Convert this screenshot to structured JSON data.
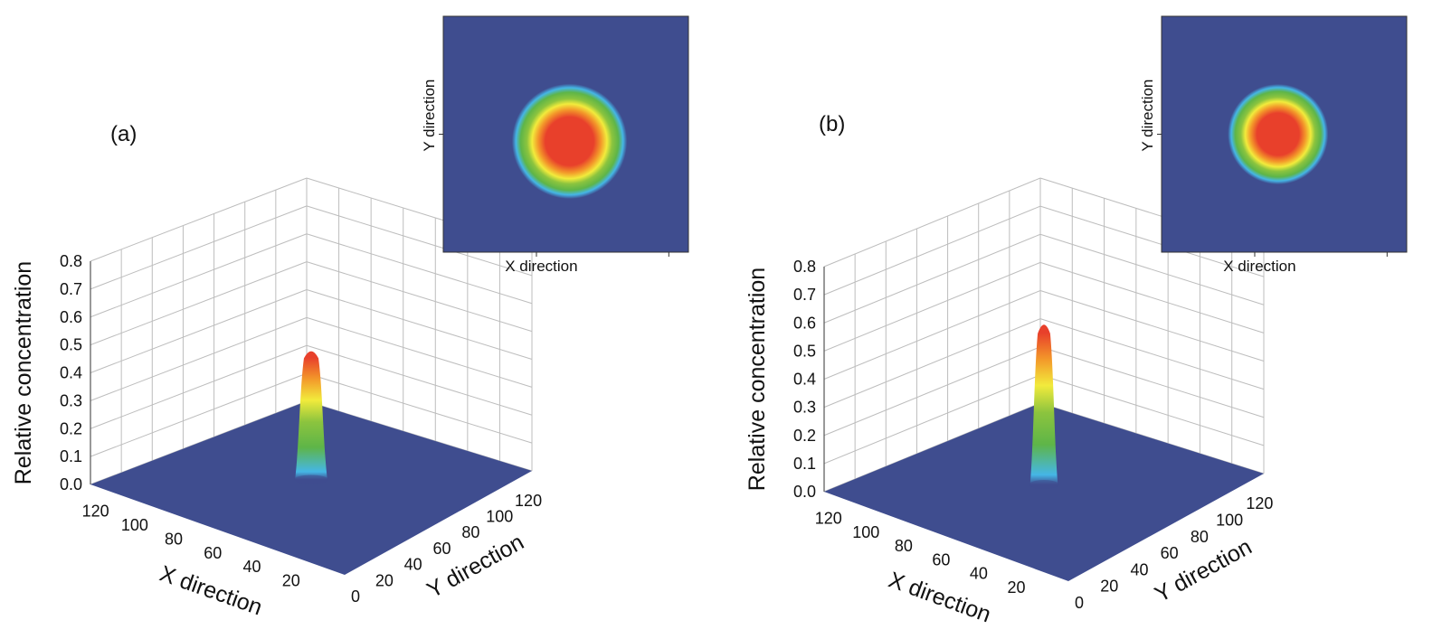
{
  "chart_data": [
    {
      "type": "surface",
      "panel_label": "(a)",
      "zlabel": "Relative concentration",
      "xlabel": "X direction",
      "ylabel": "Y direction",
      "zlim": [
        0.0,
        0.8
      ],
      "z_ticks": [
        "0.0",
        "0.1",
        "0.2",
        "0.3",
        "0.4",
        "0.5",
        "0.6",
        "0.7",
        "0.8"
      ],
      "x_ticks": [
        "20",
        "40",
        "60",
        "80",
        "100",
        "120"
      ],
      "y_ticks": [
        "0",
        "20",
        "40",
        "60",
        "80",
        "100",
        "120"
      ],
      "xlim": [
        0,
        130
      ],
      "ylim": [
        0,
        130
      ],
      "grid": true,
      "peak": {
        "x": 65,
        "y": 65,
        "z": 0.46,
        "sigma": 3.5
      },
      "inset": {
        "type": "heatmap",
        "xlabel": "X direction",
        "ylabel": "Y direction"
      }
    },
    {
      "type": "surface",
      "panel_label": "(b)",
      "zlabel": "Relative concentration",
      "xlabel": "X direction",
      "ylabel": "Y direction",
      "zlim": [
        0.0,
        0.8
      ],
      "z_ticks": [
        "0.0",
        "0.1",
        "0.2",
        "0.3",
        "0.4",
        "0.5",
        "0.6",
        "0.7",
        "0.8"
      ],
      "x_ticks": [
        "20",
        "40",
        "60",
        "80",
        "100",
        "120"
      ],
      "y_ticks": [
        "0",
        "20",
        "40",
        "60",
        "80",
        "100",
        "120"
      ],
      "xlim": [
        0,
        130
      ],
      "ylim": [
        0,
        130
      ],
      "grid": true,
      "peak": {
        "x": 65,
        "y": 65,
        "z": 0.57,
        "sigma": 3.0
      },
      "inset": {
        "type": "heatmap",
        "xlabel": "X direction",
        "ylabel": "Y direction"
      }
    }
  ],
  "colors": {
    "floor": "#3f4d8f",
    "grid": "#bdbdbd",
    "axis": "#555555",
    "colormap": [
      "#3f4d8f",
      "#45b6e6",
      "#5eb548",
      "#8cc43e",
      "#f2eb3c",
      "#f39a2a",
      "#e8402b"
    ]
  }
}
